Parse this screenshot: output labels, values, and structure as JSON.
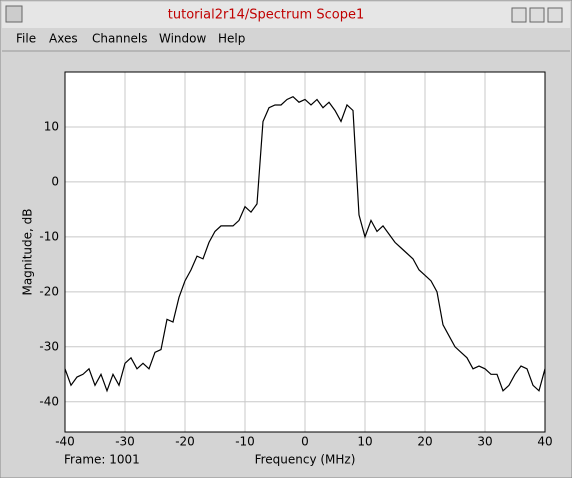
{
  "window": {
    "title": "tutorial2r14/Spectrum Scope1"
  },
  "menu": [
    "File",
    "Axes",
    "Channels",
    "Window",
    "Help"
  ],
  "status": "Frame: 1001",
  "chart_data": {
    "type": "line",
    "xlabel": "Frequency (MHz)",
    "ylabel": "Magnitude, dB",
    "x": [
      -40,
      -39,
      -38,
      -37,
      -36,
      -35,
      -34,
      -33,
      -32,
      -31,
      -30,
      -29,
      -28,
      -27,
      -26,
      -25,
      -24,
      -23,
      -22,
      -21,
      -20,
      -19,
      -18,
      -17,
      -16,
      -15,
      -14,
      -13,
      -12,
      -11,
      -10,
      -9,
      -8,
      -7,
      -6,
      -5,
      -4,
      -3,
      -2,
      -1,
      0,
      1,
      2,
      3,
      4,
      5,
      6,
      7,
      8,
      9,
      10,
      11,
      12,
      13,
      14,
      15,
      16,
      17,
      18,
      19,
      20,
      21,
      22,
      23,
      24,
      25,
      26,
      27,
      28,
      29,
      30,
      31,
      32,
      33,
      34,
      35,
      36,
      37,
      38,
      39,
      40
    ],
    "series": [
      {
        "color": "#000000",
        "values": [
          -34,
          -37,
          -35.5,
          -35,
          -34,
          -37,
          -35,
          -38,
          -35,
          -37,
          -33,
          -32,
          -34,
          -33,
          -34,
          -31,
          -30.5,
          -25,
          -25.5,
          -21,
          -18,
          -16,
          -13.5,
          -14,
          -11,
          -9,
          -8,
          -8,
          -8,
          -7,
          -4.5,
          -5.5,
          -4,
          11,
          13.5,
          14,
          14,
          15,
          15.5,
          14.5,
          15,
          14,
          15,
          13.5,
          14.5,
          13,
          11,
          14,
          13,
          -6,
          -10,
          -7,
          -9,
          -8,
          -9.5,
          -11,
          -12,
          -13,
          -14,
          -16,
          -17,
          -18,
          -20,
          -26,
          -28,
          -30,
          -31,
          -32,
          -34,
          -33.5,
          -34,
          -35,
          -35,
          -38,
          -37,
          -35,
          -33.5,
          -34,
          -37,
          -38,
          -34
        ]
      }
    ],
    "xlim": [
      -40,
      40
    ],
    "ylim": [
      -45.5,
      20
    ],
    "xticks": [
      -40,
      -30,
      -20,
      -10,
      0,
      10,
      20,
      30,
      40
    ],
    "yticks": [
      -40,
      -30,
      -20,
      -10,
      0,
      10
    ],
    "grid": true
  }
}
